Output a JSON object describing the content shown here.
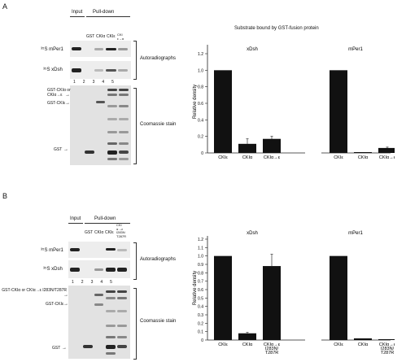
{
  "panelA": {
    "letter": "A",
    "input_label": "Input",
    "pulldown_label": "Pull-down",
    "lanes": [
      "GST",
      "CKIα",
      "CKIε",
      "CKI ε→α"
    ],
    "lane_numbers": [
      "1",
      "2",
      "3",
      "4",
      "5"
    ],
    "probe_top": "³⁵S mPer1",
    "probe_mid": "³⁵S xDsh",
    "right_top": "Autoradiographs",
    "right_bottom": "Coomassie stain",
    "left_labels": [
      "GST-CKIα or CKIα→ε",
      "GST-CKIε",
      "GST"
    ],
    "graph_title": "Substrate bound by GST-fusion protein",
    "graph_ylabel": "Relative density",
    "group_labels": [
      "xDsh",
      "mPer1"
    ],
    "y_ticks": [
      "0",
      "0.2",
      "0.4",
      "0.6",
      "0.8",
      "1.0",
      "1.2"
    ],
    "x_labels": [
      "CKIε",
      "CKIα",
      "CKIα→ε",
      "CKIε",
      "CKIα",
      "CKIα→ε"
    ]
  },
  "panelB": {
    "letter": "B",
    "input_label": "Input",
    "pulldown_label": "Pull-down",
    "lanes": [
      "GST",
      "CKIα",
      "CKIε",
      "CKI α→ε I283N T287R"
    ],
    "lane_numbers": [
      "1",
      "2",
      "3",
      "4",
      "5"
    ],
    "probe_top": "³⁵S mPer1",
    "probe_mid": "³⁵S xDsh",
    "right_top": "Autoradiographs",
    "right_bottom": "Coomassie stain",
    "left_labels": [
      "GST-CKIα or CKIα→ε I283N/T287R",
      "GST-CKIε",
      "GST"
    ],
    "graph_ylabel": "Relative density",
    "group_labels": [
      "xDsh",
      "mPer1"
    ],
    "y_ticks": [
      "0",
      "0.1",
      "0.2",
      "0.3",
      "0.4",
      "0.5",
      "0.6",
      "0.7",
      "0.8",
      "0.9",
      "1.0",
      "1.1",
      "1.2"
    ],
    "x_labels": [
      "CKIε",
      "CKIα",
      "CKIα→ε I283N/ T287R",
      "CKIε",
      "CKIα",
      "CKIα→ε I283N/ T287R"
    ]
  },
  "chart_data": [
    {
      "type": "bar",
      "title": "Substrate bound by GST-fusion protein",
      "ylabel": "Relative density",
      "ylim": [
        0,
        1.2
      ],
      "grid": false,
      "groups": [
        {
          "name": "xDsh",
          "categories": [
            "CKIε",
            "CKIα",
            "CKIα→ε"
          ],
          "values": [
            1.0,
            0.11,
            0.17
          ],
          "errors": [
            0,
            0.06,
            0.03
          ]
        },
        {
          "name": "mPer1",
          "categories": [
            "CKIε",
            "CKIα",
            "CKIα→ε"
          ],
          "values": [
            1.0,
            0.01,
            0.06
          ],
          "errors": [
            0,
            0.0,
            0.01
          ]
        }
      ]
    },
    {
      "type": "bar",
      "title": "",
      "ylabel": "Relative density",
      "ylim": [
        0,
        1.2
      ],
      "grid": false,
      "groups": [
        {
          "name": "xDsh",
          "categories": [
            "CKIε",
            "CKIα",
            "CKIα→ε I283N/T287R"
          ],
          "values": [
            1.0,
            0.08,
            0.88
          ],
          "errors": [
            0,
            0.01,
            0.14
          ]
        },
        {
          "name": "mPer1",
          "categories": [
            "CKIε",
            "CKIα",
            "CKIα→ε I283N/T287R"
          ],
          "values": [
            1.0,
            0.02,
            0.01
          ],
          "errors": [
            0,
            0.0,
            0.0
          ]
        }
      ]
    }
  ]
}
